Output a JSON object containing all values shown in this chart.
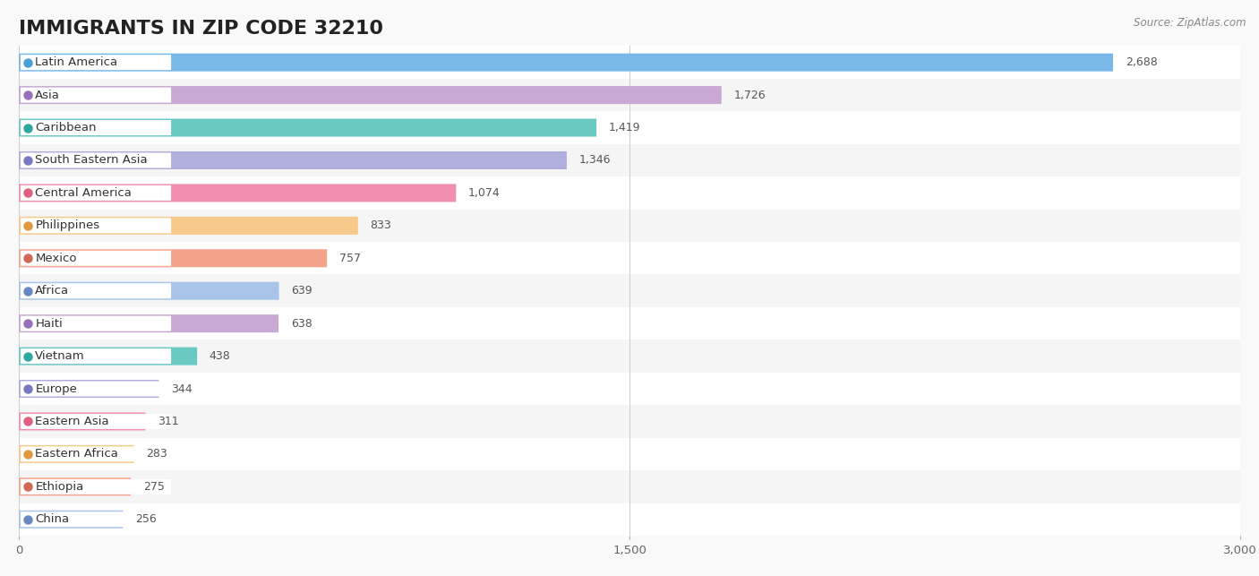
{
  "title": "IMMIGRANTS IN ZIP CODE 32210",
  "source_text": "Source: ZipAtlas.com",
  "categories": [
    "Latin America",
    "Asia",
    "Caribbean",
    "South Eastern Asia",
    "Central America",
    "Philippines",
    "Mexico",
    "Africa",
    "Haiti",
    "Vietnam",
    "Europe",
    "Eastern Asia",
    "Eastern Africa",
    "Ethiopia",
    "China"
  ],
  "values": [
    2688,
    1726,
    1419,
    1346,
    1074,
    833,
    757,
    639,
    638,
    438,
    344,
    311,
    283,
    275,
    256
  ],
  "bar_colors": [
    "#7ab8e8",
    "#c9a8d4",
    "#6bc9c4",
    "#b0aedd",
    "#f28fb1",
    "#f7c98a",
    "#f4a48a",
    "#a8c4e8",
    "#c9a8d4",
    "#6bc9c4",
    "#b0aedd",
    "#f28fb1",
    "#f7c98a",
    "#f4a48a",
    "#a8c4e8"
  ],
  "dot_colors": [
    "#4a9fd4",
    "#9870b8",
    "#2da8a0",
    "#7878c0",
    "#e06080",
    "#e09840",
    "#d06858",
    "#6888c0",
    "#9870b8",
    "#2da8a0",
    "#7878c0",
    "#e06080",
    "#e09840",
    "#d06858",
    "#6888c0"
  ],
  "row_colors": [
    "#ffffff",
    "#f5f5f5"
  ],
  "xlim": [
    0,
    3000
  ],
  "xticks": [
    0,
    1500,
    3000
  ],
  "background_color": "#f9f9f9",
  "title_fontsize": 16,
  "label_fontsize": 9.5,
  "value_fontsize": 9
}
